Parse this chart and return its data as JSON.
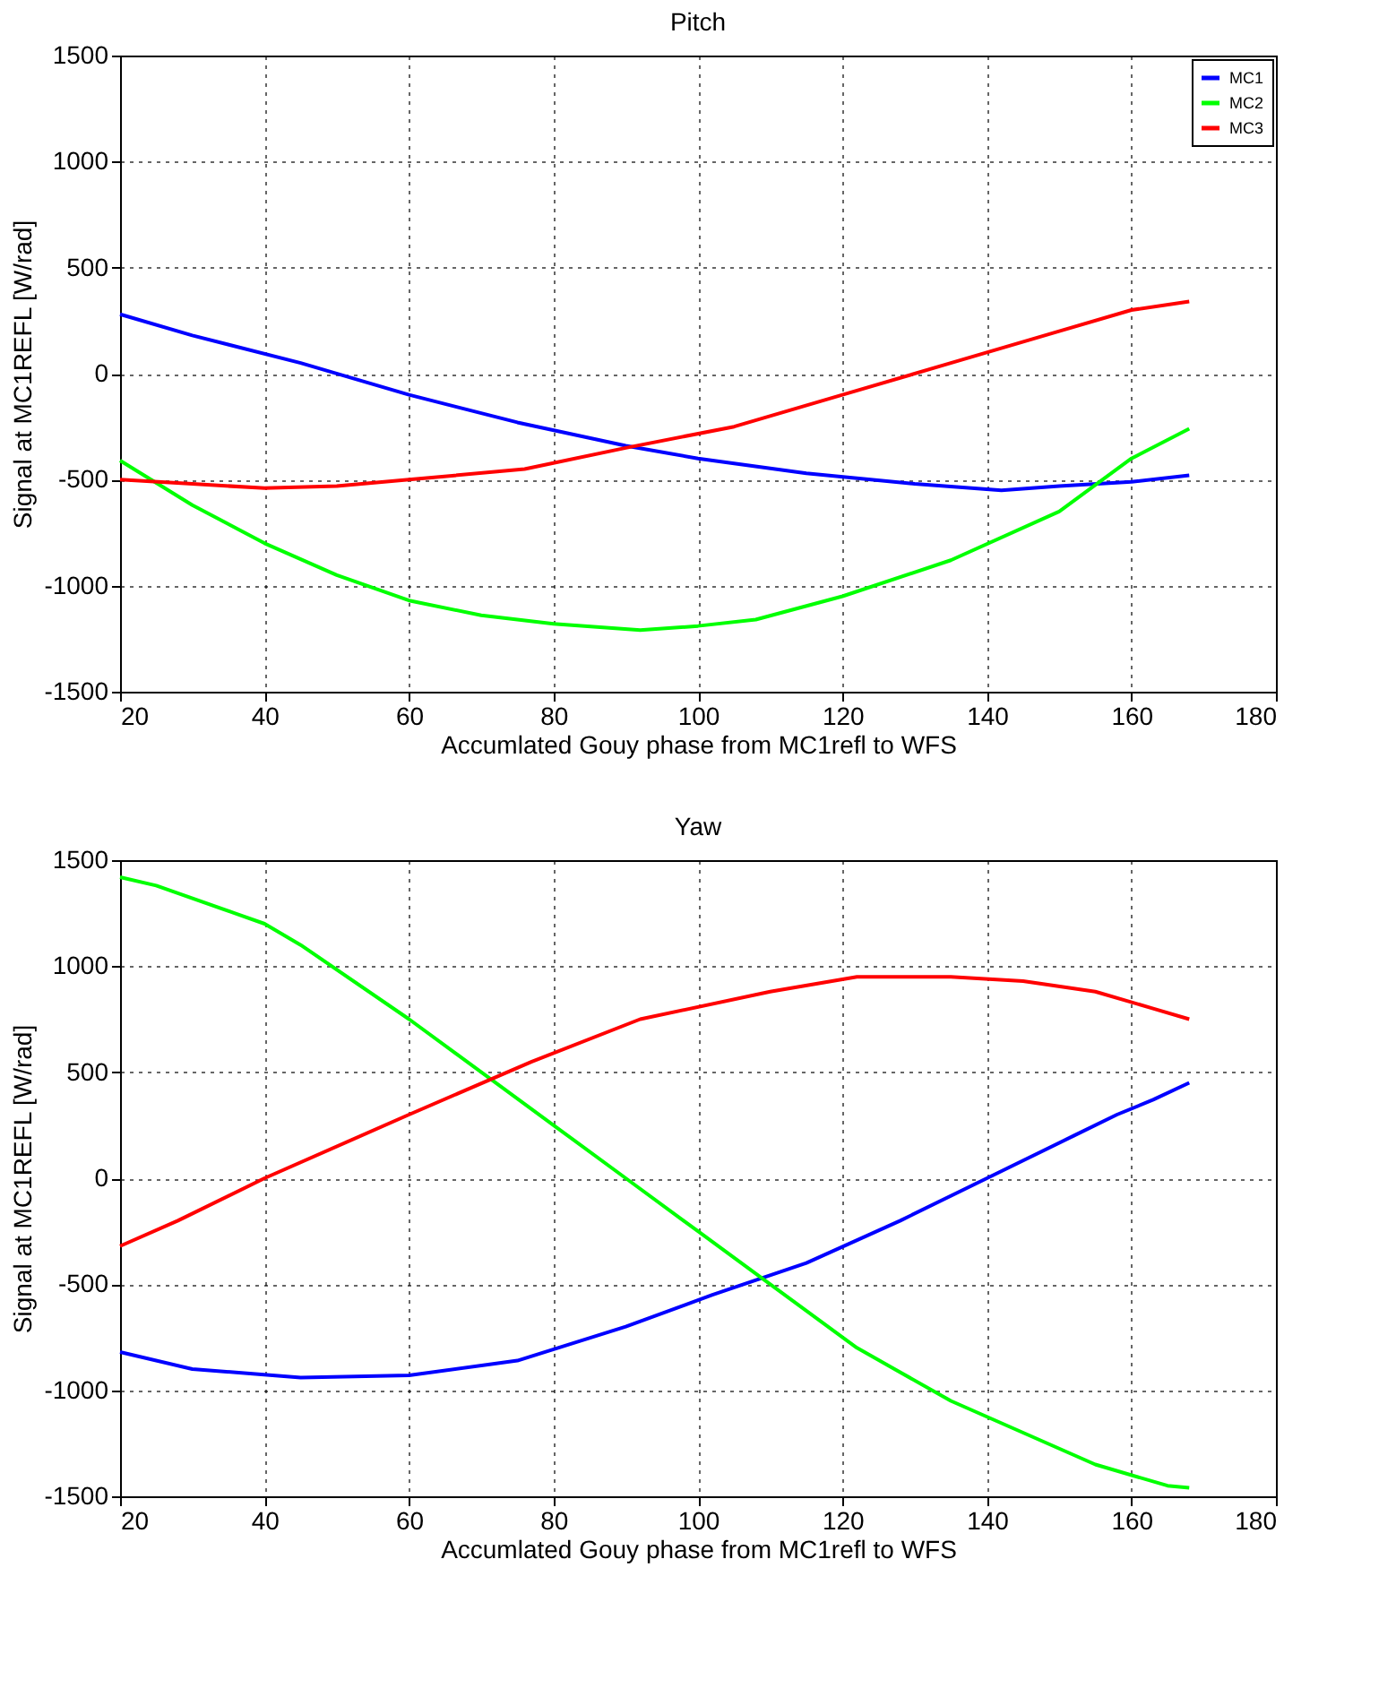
{
  "chart_data": [
    {
      "type": "line",
      "title": "Pitch",
      "xlabel": "Accumlated Gouy phase from MC1refl to WFS",
      "ylabel": "Signal at MC1REFL [W/rad]",
      "xlim": [
        20,
        180
      ],
      "xticks": [
        20,
        40,
        60,
        80,
        100,
        120,
        140,
        160,
        180
      ],
      "ylim": [
        -1500,
        1500
      ],
      "yticks": [
        -1500,
        -1000,
        -500,
        0,
        500,
        1000,
        1500
      ],
      "grid": true,
      "legend": "top right",
      "series": [
        {
          "name": "MC1",
          "color": "#0000ff",
          "x": [
            20,
            30,
            45,
            60,
            75,
            90,
            100,
            115,
            130,
            142,
            150,
            160,
            168
          ],
          "values": [
            280,
            180,
            50,
            -100,
            -230,
            -340,
            -400,
            -470,
            -520,
            -550,
            -530,
            -510,
            -480
          ]
        },
        {
          "name": "MC2",
          "color": "#00ff00",
          "x": [
            20,
            30,
            40,
            50,
            60,
            70,
            80,
            92,
            100,
            108,
            120,
            135,
            150,
            160,
            168
          ],
          "values": [
            -410,
            -620,
            -800,
            -950,
            -1070,
            -1140,
            -1180,
            -1210,
            -1190,
            -1160,
            -1050,
            -880,
            -650,
            -400,
            -260
          ]
        },
        {
          "name": "MC3",
          "color": "#ff0000",
          "x": [
            20,
            30,
            40,
            50,
            60,
            76,
            90,
            105,
            120,
            135,
            150,
            160,
            168
          ],
          "values": [
            -500,
            -520,
            -540,
            -530,
            -500,
            -450,
            -350,
            -250,
            -100,
            50,
            200,
            300,
            340
          ]
        }
      ]
    },
    {
      "type": "line",
      "title": "Yaw",
      "xlabel": "Accumlated Gouy phase from MC1refl to WFS",
      "ylabel": "Signal at MC1REFL [W/rad]",
      "xlim": [
        20,
        180
      ],
      "xticks": [
        20,
        40,
        60,
        80,
        100,
        120,
        140,
        160,
        180
      ],
      "ylim": [
        -1500,
        1500
      ],
      "yticks": [
        -1500,
        -1000,
        -500,
        0,
        500,
        1000,
        1500
      ],
      "grid": true,
      "legend": "top right",
      "series": [
        {
          "name": "MC1",
          "color": "#0000ff",
          "x": [
            20,
            30,
            45,
            60,
            75,
            90,
            102,
            115,
            128,
            140,
            152,
            158,
            163,
            168
          ],
          "values": [
            -820,
            -900,
            -940,
            -930,
            -860,
            -700,
            -550,
            -400,
            -200,
            0,
            200,
            300,
            370,
            450
          ]
        },
        {
          "name": "MC2",
          "color": "#00ff00",
          "x": [
            20,
            25,
            40,
            45,
            60,
            70,
            80,
            90,
            100,
            110,
            122,
            135,
            145,
            155,
            165,
            168
          ],
          "values": [
            1420,
            1380,
            1200,
            1100,
            750,
            500,
            250,
            0,
            -250,
            -500,
            -800,
            -1050,
            -1200,
            -1350,
            -1450,
            -1460
          ]
        },
        {
          "name": "MC3",
          "color": "#ff0000",
          "x": [
            20,
            28,
            40,
            60,
            77,
            92,
            110,
            122,
            135,
            145,
            155,
            163,
            168
          ],
          "values": [
            -320,
            -200,
            0,
            300,
            550,
            750,
            880,
            950,
            950,
            930,
            880,
            800,
            750
          ]
        }
      ]
    }
  ]
}
